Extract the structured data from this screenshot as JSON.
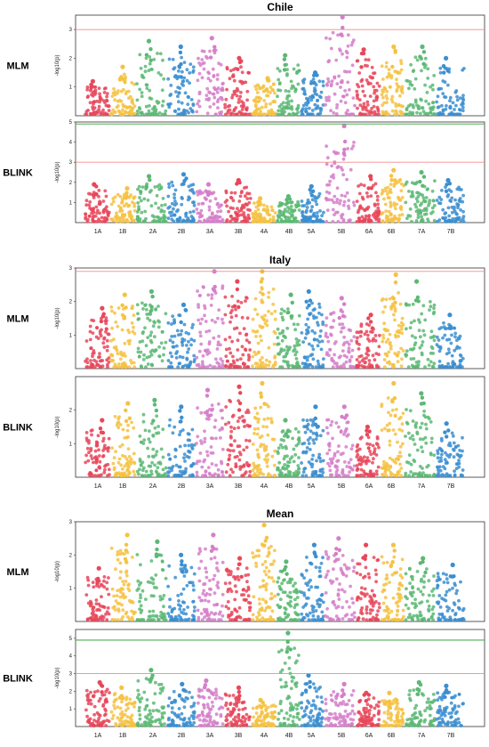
{
  "colors": {
    "palette": [
      "#e8475a",
      "#f5c242",
      "#5cb874",
      "#3b8ed0",
      "#d57fc9"
    ],
    "threshold_red": "#f08a8a",
    "threshold_green": "#4caf50"
  },
  "ylabel": "-log10(p)",
  "chromosomes": [
    "1A",
    "1B",
    "2A",
    "2B",
    "3A",
    "3B",
    "4A",
    "4B",
    "5A",
    "5B",
    "6A",
    "6B",
    "7A",
    "7B"
  ],
  "chart_data": [
    {
      "type": "scatter",
      "title": "Chile",
      "panel": "MLM",
      "ylim": [
        0,
        3.5
      ],
      "yticks": [
        1,
        2,
        3
      ],
      "threshold_red": 3.0,
      "threshold_green": null,
      "show_chromosome_labels": false,
      "chromosome_peaks": [
        1.2,
        1.7,
        2.6,
        2.4,
        2.7,
        2.0,
        1.3,
        2.1,
        1.5,
        3.5,
        2.3,
        2.4,
        2.4,
        2.0
      ]
    },
    {
      "type": "scatter",
      "title": "",
      "panel": "BLINK",
      "ylim": [
        0,
        5.0
      ],
      "yticks": [
        1,
        2,
        3,
        4,
        5
      ],
      "threshold_red": 3.0,
      "threshold_green": 4.9,
      "show_chromosome_labels": true,
      "chromosome_peaks": [
        1.9,
        1.7,
        2.3,
        2.4,
        1.9,
        2.1,
        1.2,
        1.3,
        1.8,
        4.8,
        2.3,
        2.6,
        2.5,
        2.1
      ]
    },
    {
      "type": "scatter",
      "title": "Italy",
      "panel": "MLM",
      "ylim": [
        0,
        3.0
      ],
      "yticks": [
        1,
        2,
        3
      ],
      "threshold_red": 2.9,
      "threshold_green": null,
      "show_chromosome_labels": false,
      "chromosome_peaks": [
        1.8,
        2.2,
        2.3,
        1.9,
        2.9,
        2.6,
        2.9,
        2.2,
        2.3,
        2.1,
        1.6,
        2.8,
        2.6,
        1.6
      ]
    },
    {
      "type": "scatter",
      "title": "",
      "panel": "BLINK",
      "ylim": [
        0,
        3.0
      ],
      "yticks": [
        1,
        2
      ],
      "threshold_red": null,
      "threshold_green": null,
      "show_chromosome_labels": true,
      "chromosome_peaks": [
        1.7,
        2.2,
        2.3,
        2.1,
        2.6,
        2.7,
        2.8,
        1.7,
        2.1,
        2.1,
        1.5,
        2.8,
        2.5,
        1.6
      ]
    },
    {
      "type": "scatter",
      "title": "Mean",
      "panel": "MLM",
      "ylim": [
        0,
        3.0
      ],
      "yticks": [
        1,
        2,
        3
      ],
      "threshold_red": null,
      "threshold_green": null,
      "show_chromosome_labels": false,
      "chromosome_peaks": [
        1.6,
        2.6,
        2.4,
        2.0,
        2.6,
        1.9,
        2.9,
        1.8,
        2.3,
        2.5,
        2.3,
        2.3,
        1.9,
        1.7
      ]
    },
    {
      "type": "scatter",
      "title": "",
      "panel": "BLINK",
      "ylim": [
        0,
        5.5
      ],
      "yticks": [
        1,
        2,
        3,
        4,
        5
      ],
      "threshold_red": 3.0,
      "threshold_green": 4.9,
      "show_chromosome_labels": true,
      "chromosome_peaks": [
        2.5,
        2.2,
        3.2,
        2.4,
        2.6,
        2.2,
        1.5,
        5.3,
        2.9,
        2.4,
        1.9,
        1.9,
        2.5,
        2.3
      ]
    }
  ]
}
